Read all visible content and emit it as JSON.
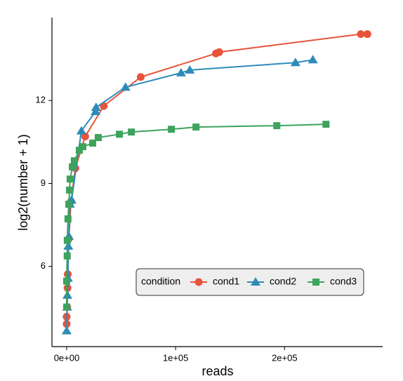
{
  "chart_data": {
    "type": "scatter",
    "x_label": "reads",
    "y_label": "log2(number + 1)",
    "xlim": [
      -13500,
      290000
    ],
    "ylim": [
      3.1,
      15
    ],
    "xticks": [
      {
        "value": 0,
        "label": "0e+00"
      },
      {
        "value": 100000,
        "label": "1e+05"
      },
      {
        "value": 200000,
        "label": "2e+05"
      }
    ],
    "yticks": [
      6,
      9,
      12
    ],
    "grid": false,
    "legend_title": "condition",
    "legend_position": "bottom-right",
    "series": [
      {
        "name": "cond1",
        "color": "#e8533a",
        "marker": "circle",
        "x": [
          0,
          0,
          500,
          800,
          1000,
          2000,
          4000,
          8000,
          17000,
          34000,
          68000,
          137000,
          140000,
          270000,
          276000
        ],
        "values": [
          3.92,
          4.18,
          4.53,
          5.22,
          5.72,
          7.0,
          8.35,
          9.55,
          10.7,
          11.8,
          12.85,
          13.7,
          13.75,
          14.4,
          14.4
        ]
      },
      {
        "name": "cond2",
        "color": "#2e8bb8",
        "marker": "triangle",
        "x": [
          0,
          500,
          700,
          1200,
          1500,
          2000,
          3000,
          4500,
          13500,
          26500,
          27000,
          54000,
          105000,
          113000,
          210000,
          226000
        ],
        "values": [
          3.67,
          4.53,
          4.96,
          5.57,
          6.73,
          7.09,
          8.25,
          8.4,
          10.9,
          11.6,
          11.75,
          12.48,
          13.0,
          13.1,
          13.37,
          13.47
        ]
      },
      {
        "name": "cond3",
        "color": "#3da35d",
        "marker": "square",
        "x": [
          0,
          0,
          500,
          600,
          1200,
          2000,
          2600,
          3200,
          5200,
          7000,
          11600,
          14800,
          23900,
          29000,
          48400,
          59400,
          96100,
          118700,
          192900,
          238000
        ],
        "values": [
          4.53,
          5.47,
          6.38,
          6.94,
          7.72,
          8.25,
          8.76,
          9.16,
          9.6,
          9.82,
          10.2,
          10.33,
          10.46,
          10.66,
          10.78,
          10.86,
          10.96,
          11.04,
          11.09,
          11.14
        ]
      }
    ]
  }
}
